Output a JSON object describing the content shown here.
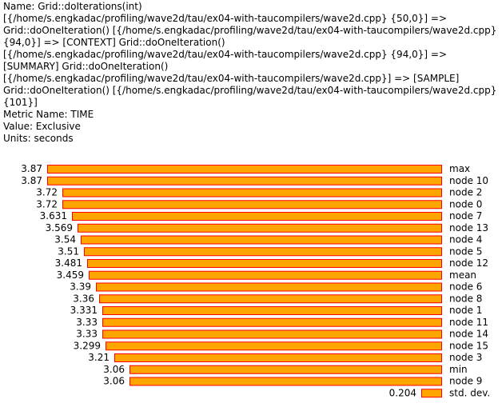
{
  "header": {
    "lines": [
      "Name: Grid::doIterations(int)",
      "[{/home/s.engkadac/profiling/wave2d/tau/ex04-with-taucompilers/wave2d.cpp} {50,0}] =>",
      "Grid::doOneIteration() [{/home/s.engkadac/profiling/wave2d/tau/ex04-with-taucompilers/wave2d.cpp}",
      "{94,0}] => [CONTEXT] Grid::doOneIteration()",
      "[{/home/s.engkadac/profiling/wave2d/tau/ex04-with-taucompilers/wave2d.cpp} {94,0}] =>",
      "[SUMMARY] Grid::doOneIteration()",
      "[{/home/s.engkadac/profiling/wave2d/tau/ex04-with-taucompilers/wave2d.cpp}] => [SAMPLE]",
      "Grid::doOneIteration() [{/home/s.engkadac/profiling/wave2d/tau/ex04-with-taucompilers/wave2d.cpp}",
      "{101}]",
      "Metric Name: TIME",
      "Value: Exclusive",
      "Units: seconds"
    ]
  },
  "colors": {
    "bar_fill": "#FFA500",
    "bar_stroke": "#FF0000",
    "text": "#000000",
    "background": "#FFFFFF"
  },
  "chart_data": {
    "type": "bar",
    "orientation": "horizontal",
    "bar_alignment": "right",
    "categories": [
      "max",
      "node 10",
      "node 2",
      "node 0",
      "node 7",
      "node 13",
      "node 4",
      "node 5",
      "node 12",
      "mean",
      "node 6",
      "node 8",
      "node 1",
      "node 11",
      "node 14",
      "node 15",
      "node 3",
      "min",
      "node 9",
      "std. dev."
    ],
    "values": [
      3.87,
      3.87,
      3.72,
      3.72,
      3.631,
      3.569,
      3.54,
      3.51,
      3.481,
      3.459,
      3.39,
      3.36,
      3.331,
      3.33,
      3.33,
      3.299,
      3.21,
      3.06,
      3.06,
      0.204
    ],
    "value_labels": [
      "3.87",
      "3.87",
      "3.72",
      "3.72",
      "3.631",
      "3.569",
      "3.54",
      "3.51",
      "3.481",
      "3.459",
      "3.39",
      "3.36",
      "3.331",
      "3.33",
      "3.33",
      "3.299",
      "3.21",
      "3.06",
      "3.06",
      "0.204"
    ],
    "xlim": [
      0,
      3.87
    ],
    "grid": false,
    "legend": "none"
  }
}
